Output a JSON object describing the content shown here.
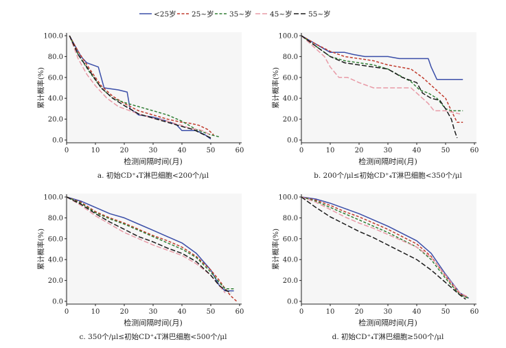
{
  "legend": {
    "placement": "top",
    "items": [
      {
        "label": "<25岁",
        "color": "#3a4ea8",
        "dash": "solid"
      },
      {
        "label": "25~岁",
        "color": "#c0392b",
        "dash": "short"
      },
      {
        "label": "35~岁",
        "color": "#2e7d32",
        "dash": "short"
      },
      {
        "label": "45~岁",
        "color": "#e89aa6",
        "dash": "long"
      },
      {
        "label": "55~岁",
        "color": "#1a1a1a",
        "dash": "long"
      }
    ]
  },
  "chart_data": [
    {
      "type": "line",
      "caption": "a. 初始CD⁺₄T淋巴细胞<200个/μl",
      "xlabel": "检测间隔时间(月)",
      "ylabel": "累计概率(%)",
      "xlim": [
        0,
        60
      ],
      "ylim": [
        0,
        100
      ],
      "xticks": [
        "0",
        "10",
        "20",
        "30",
        "40",
        "50",
        "60"
      ],
      "yticks": [
        "0.0",
        "20.0",
        "40.0",
        "60.0",
        "80.0",
        "100.0"
      ],
      "series": [
        {
          "name": "<25岁",
          "x": [
            1,
            3,
            5,
            7,
            9,
            11,
            13,
            18,
            21,
            22,
            25,
            30,
            35,
            38,
            40,
            45,
            48,
            50
          ],
          "y": [
            100,
            90,
            80,
            74,
            72,
            70,
            50,
            48,
            46,
            30,
            24,
            22,
            18,
            15,
            9,
            9,
            5,
            1
          ]
        },
        {
          "name": "25~岁",
          "x": [
            1,
            4,
            8,
            12,
            16,
            20,
            25,
            30,
            35,
            40,
            43,
            46,
            49,
            51
          ],
          "y": [
            100,
            85,
            68,
            52,
            42,
            35,
            28,
            24,
            20,
            17,
            16,
            14,
            10,
            5
          ]
        },
        {
          "name": "35~岁",
          "x": [
            1,
            4,
            8,
            12,
            16,
            20,
            25,
            30,
            35,
            40,
            45,
            50,
            53
          ],
          "y": [
            100,
            82,
            65,
            50,
            40,
            36,
            32,
            28,
            24,
            18,
            10,
            5,
            3
          ]
        },
        {
          "name": "45~岁",
          "x": [
            1,
            4,
            7,
            10,
            14,
            18,
            22,
            26,
            30,
            35,
            40,
            43,
            46,
            48,
            50
          ],
          "y": [
            100,
            78,
            63,
            52,
            40,
            32,
            28,
            24,
            21,
            18,
            14,
            11,
            10,
            8,
            4
          ]
        },
        {
          "name": "55~岁",
          "x": [
            1,
            4,
            8,
            12,
            16,
            20,
            25,
            30,
            35,
            40,
            44,
            47,
            50
          ],
          "y": [
            100,
            82,
            66,
            50,
            40,
            33,
            25,
            21,
            17,
            13,
            10,
            6,
            2
          ]
        }
      ]
    },
    {
      "type": "line",
      "caption": "b. 200个/μl≤初始CD⁺₄T淋巴细胞<350个/μl",
      "xlabel": "检测间隔时间(月)",
      "ylabel": "累计概率(%)",
      "xlim": [
        0,
        60
      ],
      "ylim": [
        0,
        100
      ],
      "xticks": [
        "0",
        "10",
        "20",
        "30",
        "40",
        "50",
        "60"
      ],
      "yticks": [
        "0.0",
        "20.0",
        "40.0",
        "60.0",
        "80.0",
        "100.0"
      ],
      "series": [
        {
          "name": "<25岁",
          "x": [
            0,
            5,
            10,
            15,
            18,
            22,
            30,
            34,
            44,
            45,
            47,
            56
          ],
          "y": [
            100,
            92,
            84,
            84,
            82,
            80,
            80,
            78,
            78,
            70,
            58,
            58
          ]
        },
        {
          "name": "25~岁",
          "x": [
            0,
            5,
            10,
            15,
            20,
            25,
            30,
            34,
            38,
            42,
            46,
            50,
            52,
            54,
            56
          ],
          "y": [
            100,
            92,
            85,
            80,
            78,
            76,
            72,
            70,
            68,
            60,
            50,
            40,
            28,
            17,
            17
          ]
        },
        {
          "name": "35~岁",
          "x": [
            0,
            5,
            10,
            15,
            20,
            25,
            30,
            34,
            38,
            41,
            44,
            47,
            50,
            52,
            56
          ],
          "y": [
            100,
            90,
            80,
            76,
            74,
            72,
            68,
            62,
            56,
            48,
            45,
            40,
            30,
            28,
            28
          ]
        },
        {
          "name": "45~岁",
          "x": [
            0,
            4,
            8,
            10,
            13,
            16,
            20,
            25,
            30,
            38,
            44,
            46,
            50,
            55
          ],
          "y": [
            100,
            90,
            80,
            70,
            60,
            60,
            55,
            50,
            50,
            50,
            35,
            28,
            28,
            25
          ]
        },
        {
          "name": "55~岁",
          "x": [
            0,
            5,
            10,
            15,
            20,
            25,
            30,
            35,
            40,
            42,
            45,
            48,
            50,
            52,
            53,
            54
          ],
          "y": [
            100,
            90,
            80,
            74,
            72,
            70,
            68,
            60,
            55,
            45,
            40,
            38,
            30,
            20,
            10,
            2
          ]
        }
      ]
    },
    {
      "type": "line",
      "caption": "c. 350个/μl≤初始CD⁺₄T淋巴细胞<500个/μl",
      "xlabel": "检测间隔时间(月)",
      "ylabel": "累计概率(%)",
      "xlim": [
        0,
        60
      ],
      "ylim": [
        0,
        100
      ],
      "xticks": [
        "0",
        "10",
        "20",
        "30",
        "40",
        "50",
        "60"
      ],
      "yticks": [
        "0.0",
        "20.0",
        "40.0",
        "60.0",
        "80.0",
        "100.0"
      ],
      "series": [
        {
          "name": "<25岁",
          "x": [
            0,
            5,
            10,
            15,
            20,
            25,
            30,
            35,
            40,
            45,
            50,
            53,
            55,
            58
          ],
          "y": [
            100,
            96,
            90,
            84,
            80,
            74,
            68,
            62,
            56,
            46,
            30,
            15,
            10,
            10
          ]
        },
        {
          "name": "25~岁",
          "x": [
            0,
            5,
            10,
            15,
            20,
            25,
            30,
            35,
            40,
            45,
            50,
            53,
            55,
            57,
            59
          ],
          "y": [
            100,
            95,
            86,
            80,
            75,
            69,
            63,
            58,
            52,
            43,
            30,
            20,
            12,
            5,
            0
          ]
        },
        {
          "name": "35~岁",
          "x": [
            0,
            5,
            10,
            15,
            20,
            25,
            30,
            35,
            40,
            45,
            50,
            53,
            55,
            58
          ],
          "y": [
            100,
            94,
            85,
            79,
            74,
            68,
            62,
            56,
            50,
            42,
            28,
            18,
            12,
            12
          ]
        },
        {
          "name": "45~岁",
          "x": [
            0,
            5,
            10,
            15,
            20,
            25,
            30,
            35,
            40,
            45,
            50,
            55
          ],
          "y": [
            100,
            92,
            82,
            74,
            66,
            60,
            54,
            49,
            44,
            36,
            25,
            8
          ]
        },
        {
          "name": "55~岁",
          "x": [
            0,
            5,
            10,
            15,
            20,
            25,
            30,
            35,
            40,
            45,
            50,
            53,
            55,
            57
          ],
          "y": [
            100,
            93,
            84,
            76,
            69,
            62,
            57,
            51,
            46,
            38,
            25,
            15,
            11,
            8
          ]
        }
      ]
    },
    {
      "type": "line",
      "caption": "d. 初始CD⁺₄T淋巴细胞≥500个/μl",
      "xlabel": "检测间隔时间(月)",
      "ylabel": "累计概率(%)",
      "xlim": [
        0,
        60
      ],
      "ylim": [
        0,
        100
      ],
      "xticks": [
        "0",
        "10",
        "20",
        "30",
        "40",
        "50",
        "60"
      ],
      "yticks": [
        "0.0",
        "20.0",
        "40.0",
        "60.0",
        "80.0",
        "100.0"
      ],
      "series": [
        {
          "name": "<25岁",
          "x": [
            0,
            5,
            10,
            15,
            20,
            25,
            30,
            35,
            40,
            45,
            50,
            55,
            58
          ],
          "y": [
            100,
            98,
            94,
            89,
            84,
            78,
            72,
            65,
            58,
            46,
            26,
            8,
            3
          ]
        },
        {
          "name": "25~岁",
          "x": [
            0,
            5,
            10,
            15,
            20,
            25,
            30,
            35,
            40,
            45,
            50,
            55,
            58
          ],
          "y": [
            100,
            97,
            92,
            86,
            81,
            75,
            69,
            62,
            55,
            43,
            24,
            7,
            3
          ]
        },
        {
          "name": "35~岁",
          "x": [
            0,
            5,
            10,
            15,
            20,
            25,
            30,
            35,
            40,
            45,
            50,
            55,
            58
          ],
          "y": [
            100,
            96,
            90,
            84,
            78,
            72,
            66,
            59,
            52,
            40,
            22,
            6,
            3
          ]
        },
        {
          "name": "45~岁",
          "x": [
            0,
            5,
            10,
            15,
            20,
            25,
            30,
            35,
            40,
            45,
            50,
            55,
            58
          ],
          "y": [
            100,
            95,
            88,
            81,
            75,
            70,
            64,
            58,
            52,
            42,
            25,
            8,
            4
          ]
        },
        {
          "name": "55~岁",
          "x": [
            0,
            5,
            10,
            15,
            20,
            25,
            30,
            35,
            40,
            45,
            50,
            55,
            57
          ],
          "y": [
            100,
            90,
            81,
            74,
            67,
            61,
            54,
            47,
            40,
            30,
            18,
            6,
            2
          ]
        }
      ]
    }
  ]
}
